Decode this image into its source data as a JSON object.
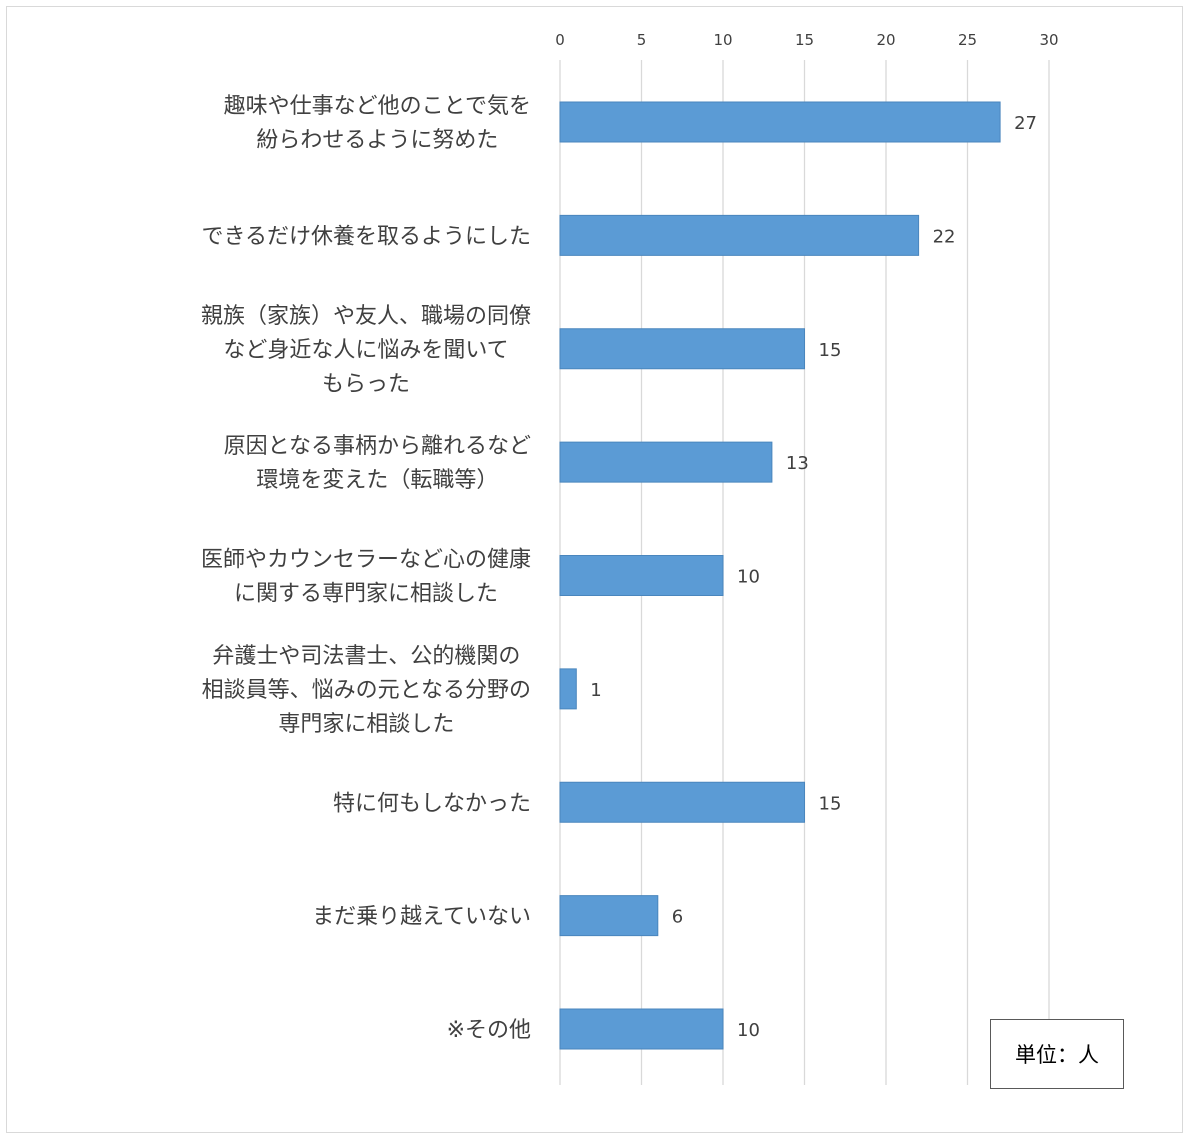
{
  "chart_data": {
    "type": "bar",
    "orientation": "horizontal",
    "categories": [
      [
        "趣味や仕事など他のことで気を",
        "紛らわせるように努めた"
      ],
      [
        "できるだけ休養を取るようにした"
      ],
      [
        "親族（家族）や友人、職場の同僚",
        "など身近な人に悩みを聞いて",
        "もらった"
      ],
      [
        "原因となる事柄から離れるなど",
        "環境を変えた（転職等）"
      ],
      [
        "医師やカウンセラーなど心の健康",
        "に関する専門家に相談した"
      ],
      [
        "弁護士や司法書士、公的機関の",
        "相談員等、悩みの元となる分野の",
        "専門家に相談した"
      ],
      [
        "特に何もしなかった"
      ],
      [
        "まだ乗り越えていない"
      ],
      [
        "※その他"
      ]
    ],
    "values": [
      27,
      22,
      15,
      13,
      10,
      1,
      15,
      6,
      10
    ],
    "data_labels": [
      "27",
      "22",
      "15",
      "13",
      "10",
      "1",
      "15",
      "6",
      "10"
    ],
    "xlim": [
      0,
      30
    ],
    "ticks": [
      0,
      5,
      10,
      15,
      20,
      25,
      30
    ],
    "tick_labels": [
      "0",
      "5",
      "10",
      "15",
      "20",
      "25",
      "30"
    ],
    "axis_position": "top",
    "grid": true,
    "bar_color": "#5b9bd5",
    "unit_label": "単位：人"
  }
}
